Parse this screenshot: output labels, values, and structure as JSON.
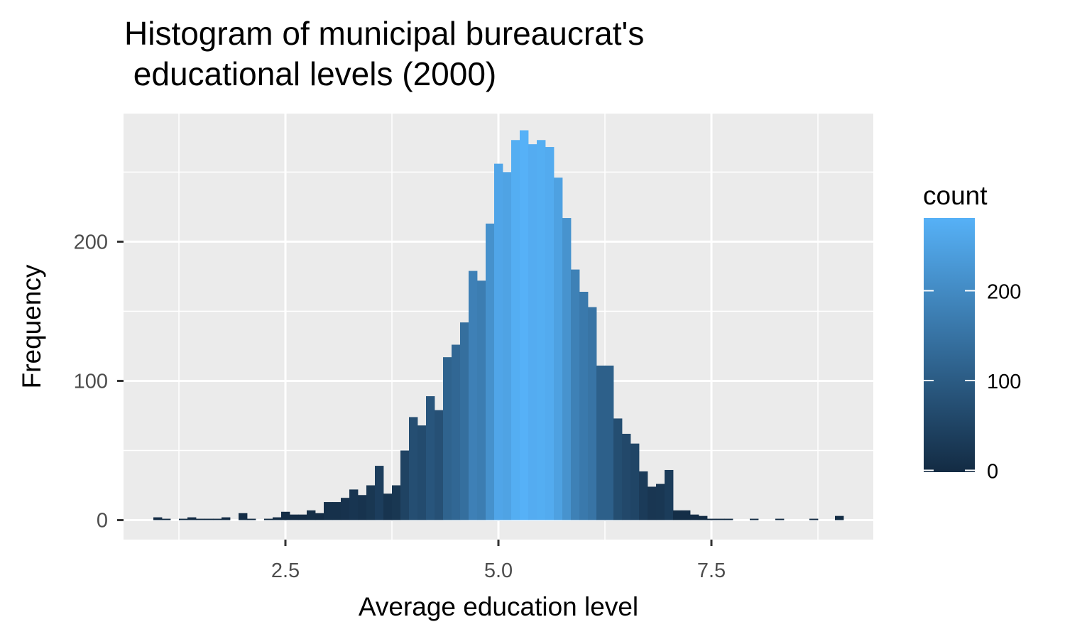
{
  "chart_data": {
    "type": "bar",
    "subtype": "histogram",
    "title_lines": [
      "Histogram of municipal bureaucrat's",
      " educational levels (2000)"
    ],
    "xlabel": "Average education level",
    "ylabel": "Frequency",
    "xlim": [
      0.6,
      9.4
    ],
    "ylim": [
      -14,
      292
    ],
    "x_ticks": [
      2.5,
      5.0,
      7.5
    ],
    "x_tick_labels": [
      "2.5",
      "5.0",
      "7.5"
    ],
    "y_ticks": [
      0,
      100,
      200
    ],
    "y_tick_labels": [
      "0",
      "100",
      "200"
    ],
    "grid": true,
    "bin_width": 0.1,
    "bins": [
      {
        "x": 1.0,
        "count": 2
      },
      {
        "x": 1.1,
        "count": 1
      },
      {
        "x": 1.3,
        "count": 1
      },
      {
        "x": 1.4,
        "count": 2
      },
      {
        "x": 1.5,
        "count": 1
      },
      {
        "x": 1.6,
        "count": 1
      },
      {
        "x": 1.7,
        "count": 1
      },
      {
        "x": 1.8,
        "count": 2
      },
      {
        "x": 2.0,
        "count": 5
      },
      {
        "x": 2.1,
        "count": 1
      },
      {
        "x": 2.3,
        "count": 1
      },
      {
        "x": 2.4,
        "count": 2
      },
      {
        "x": 2.5,
        "count": 6
      },
      {
        "x": 2.6,
        "count": 4
      },
      {
        "x": 2.7,
        "count": 4
      },
      {
        "x": 2.8,
        "count": 7
      },
      {
        "x": 2.9,
        "count": 5
      },
      {
        "x": 3.0,
        "count": 13
      },
      {
        "x": 3.1,
        "count": 13
      },
      {
        "x": 3.2,
        "count": 16
      },
      {
        "x": 3.3,
        "count": 22
      },
      {
        "x": 3.4,
        "count": 18
      },
      {
        "x": 3.5,
        "count": 25
      },
      {
        "x": 3.6,
        "count": 39
      },
      {
        "x": 3.7,
        "count": 19
      },
      {
        "x": 3.8,
        "count": 25
      },
      {
        "x": 3.9,
        "count": 50
      },
      {
        "x": 4.0,
        "count": 74
      },
      {
        "x": 4.1,
        "count": 68
      },
      {
        "x": 4.2,
        "count": 89
      },
      {
        "x": 4.3,
        "count": 79
      },
      {
        "x": 4.4,
        "count": 117
      },
      {
        "x": 4.5,
        "count": 126
      },
      {
        "x": 4.6,
        "count": 142
      },
      {
        "x": 4.7,
        "count": 179
      },
      {
        "x": 4.8,
        "count": 172
      },
      {
        "x": 4.9,
        "count": 213
      },
      {
        "x": 5.0,
        "count": 256
      },
      {
        "x": 5.1,
        "count": 250
      },
      {
        "x": 5.2,
        "count": 273
      },
      {
        "x": 5.3,
        "count": 280
      },
      {
        "x": 5.4,
        "count": 270
      },
      {
        "x": 5.5,
        "count": 273
      },
      {
        "x": 5.6,
        "count": 268
      },
      {
        "x": 5.7,
        "count": 246
      },
      {
        "x": 5.8,
        "count": 217
      },
      {
        "x": 5.9,
        "count": 180
      },
      {
        "x": 6.0,
        "count": 164
      },
      {
        "x": 6.1,
        "count": 153
      },
      {
        "x": 6.2,
        "count": 111
      },
      {
        "x": 6.3,
        "count": 111
      },
      {
        "x": 6.4,
        "count": 73
      },
      {
        "x": 6.5,
        "count": 62
      },
      {
        "x": 6.6,
        "count": 55
      },
      {
        "x": 6.7,
        "count": 35
      },
      {
        "x": 6.8,
        "count": 24
      },
      {
        "x": 6.9,
        "count": 26
      },
      {
        "x": 7.0,
        "count": 36
      },
      {
        "x": 7.1,
        "count": 7
      },
      {
        "x": 7.2,
        "count": 7
      },
      {
        "x": 7.3,
        "count": 4
      },
      {
        "x": 7.4,
        "count": 3
      },
      {
        "x": 7.5,
        "count": 1
      },
      {
        "x": 7.6,
        "count": 1
      },
      {
        "x": 7.7,
        "count": 1
      },
      {
        "x": 8.0,
        "count": 1
      },
      {
        "x": 8.3,
        "count": 1
      },
      {
        "x": 8.7,
        "count": 1
      },
      {
        "x": 9.0,
        "count": 3
      }
    ],
    "fill_scale": {
      "name": "count",
      "low_color": "#132b43",
      "high_color": "#56b1f7",
      "limits": [
        1,
        280
      ],
      "breaks": [
        0,
        100,
        200
      ],
      "break_labels": [
        "0",
        "100",
        "200"
      ]
    },
    "panel_background": "#ebebeb",
    "grid_color": "#ffffff"
  }
}
